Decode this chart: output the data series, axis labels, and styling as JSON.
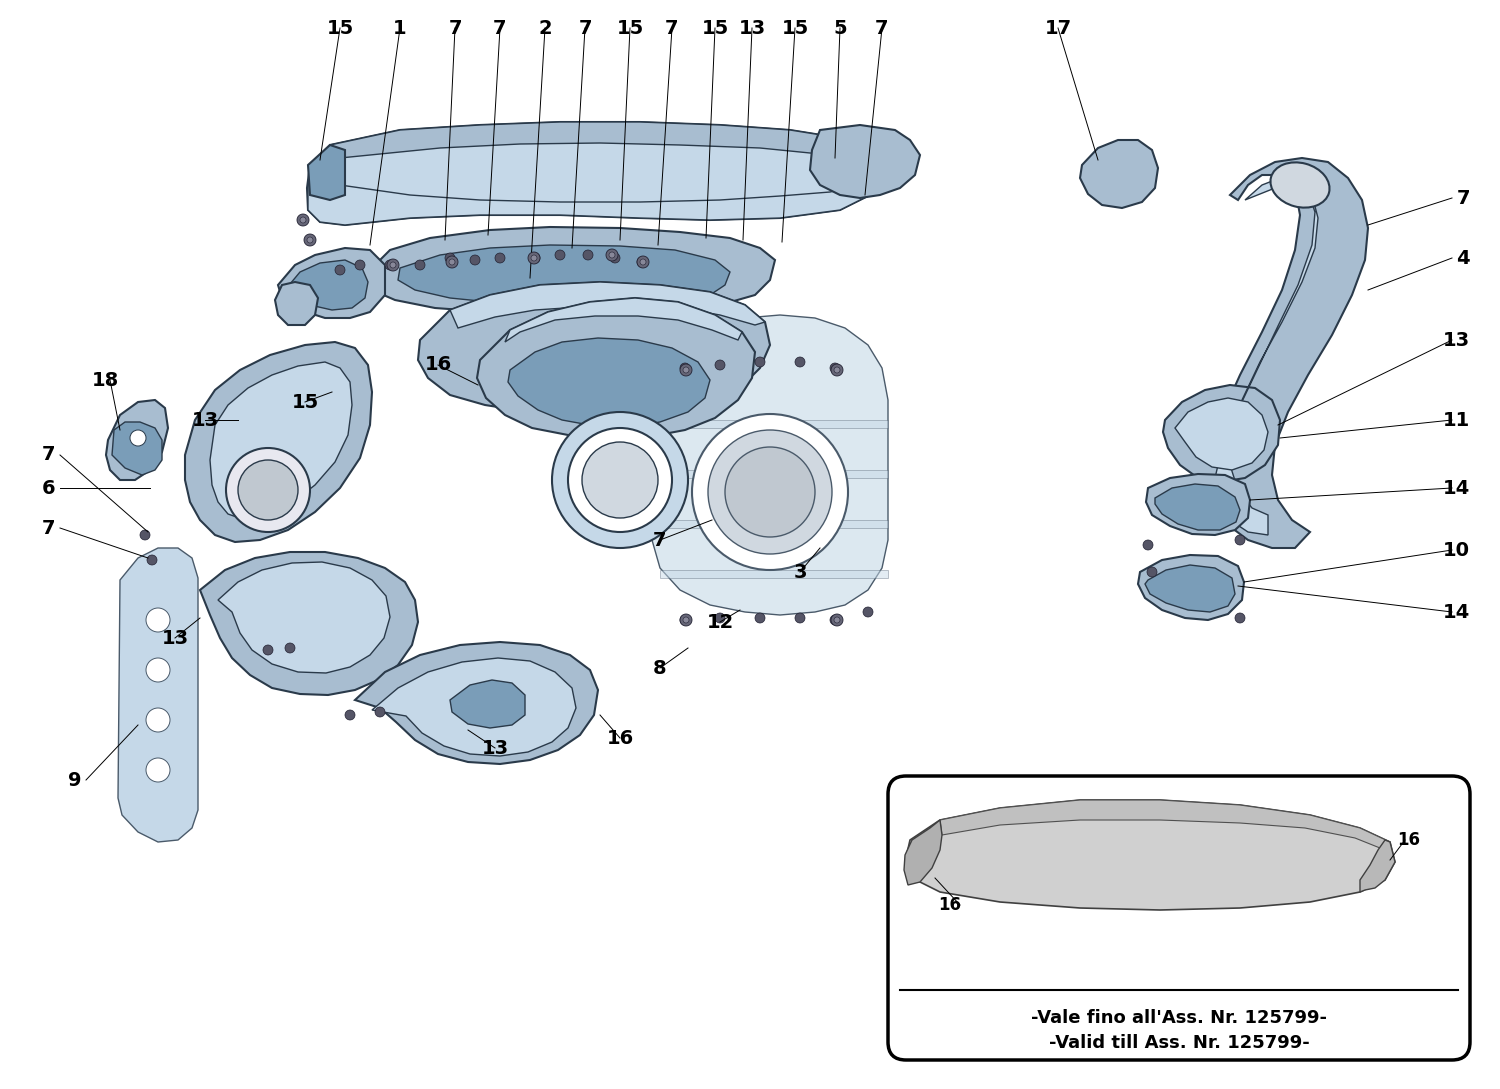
{
  "background_color": "#ffffff",
  "part_fill": "#a8bdd0",
  "part_fill_light": "#c5d8e8",
  "part_fill_dark": "#7a9db8",
  "part_edge": "#2a3a4a",
  "housing_fill": "#dce8f0",
  "housing_edge": "#4a5a6a",
  "inset_text_line1": "-Vale fino all'Ass. Nr. 125799-",
  "inset_text_line2": "-Valid till Ass. Nr. 125799-",
  "figsize": [
    15.0,
    10.89
  ],
  "dpi": 100
}
